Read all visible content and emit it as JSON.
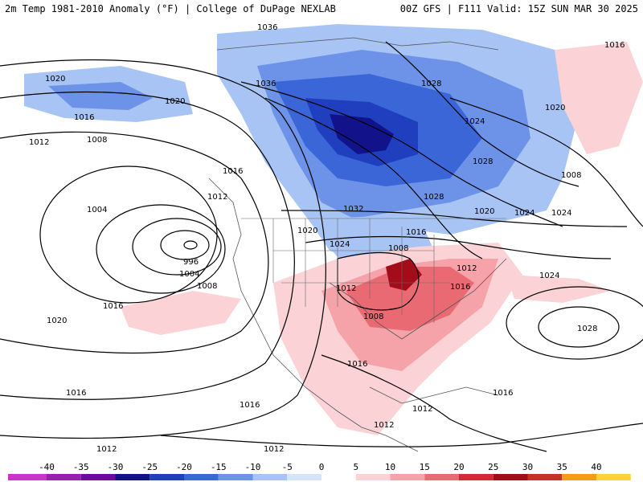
{
  "header": {
    "left_title": "2m Temp 1981-2010 Anomaly (°F) | College of DuPage NEXLAB",
    "right_title": "00Z GFS | F111 Valid: 15Z SUN MAR 30 2025"
  },
  "pressure_labels": [
    "1036",
    "1036",
    "1028",
    "1016",
    "1020",
    "1020",
    "1016",
    "1012",
    "1008",
    "1004",
    "1016",
    "1012",
    "1024",
    "1008",
    "1016",
    "1024",
    "1020",
    "1024",
    "996",
    "1004",
    "1008",
    "1008",
    "1016",
    "1012",
    "1016",
    "1024",
    "1032",
    "1008",
    "1028",
    "1028",
    "1028",
    "1024",
    "1016",
    "1020",
    "1012",
    "1012",
    "1016",
    "1016",
    "1012",
    "1020",
    "1012",
    "1012",
    "1016",
    "1020"
  ],
  "colorbar": {
    "ticks": [
      "-40",
      "-35",
      "-30",
      "-25",
      "-20",
      "-15",
      "-10",
      "-5",
      "0",
      "5",
      "10",
      "15",
      "20",
      "25",
      "30",
      "35",
      "40"
    ],
    "colors": [
      "#cc33cc",
      "#9a1fb0",
      "#6a0aa3",
      "#12128a",
      "#1f3fbf",
      "#3a66d8",
      "#6c93e8",
      "#a8c4f4",
      "#d6e4fb",
      "#ffffff",
      "#fbd3d6",
      "#f5a3a8",
      "#ea6a73",
      "#d22a36",
      "#a30d1a",
      "#c7302a",
      "#f59a1b",
      "#fcd33a"
    ]
  },
  "colors": {
    "cold_deep": "#12128a",
    "cold_mid": "#3a66d8",
    "cold_light": "#a8c4f4",
    "warm_light": "#fbd3d6",
    "warm_mid": "#ea6a73",
    "warm_deep": "#a30d1a"
  }
}
